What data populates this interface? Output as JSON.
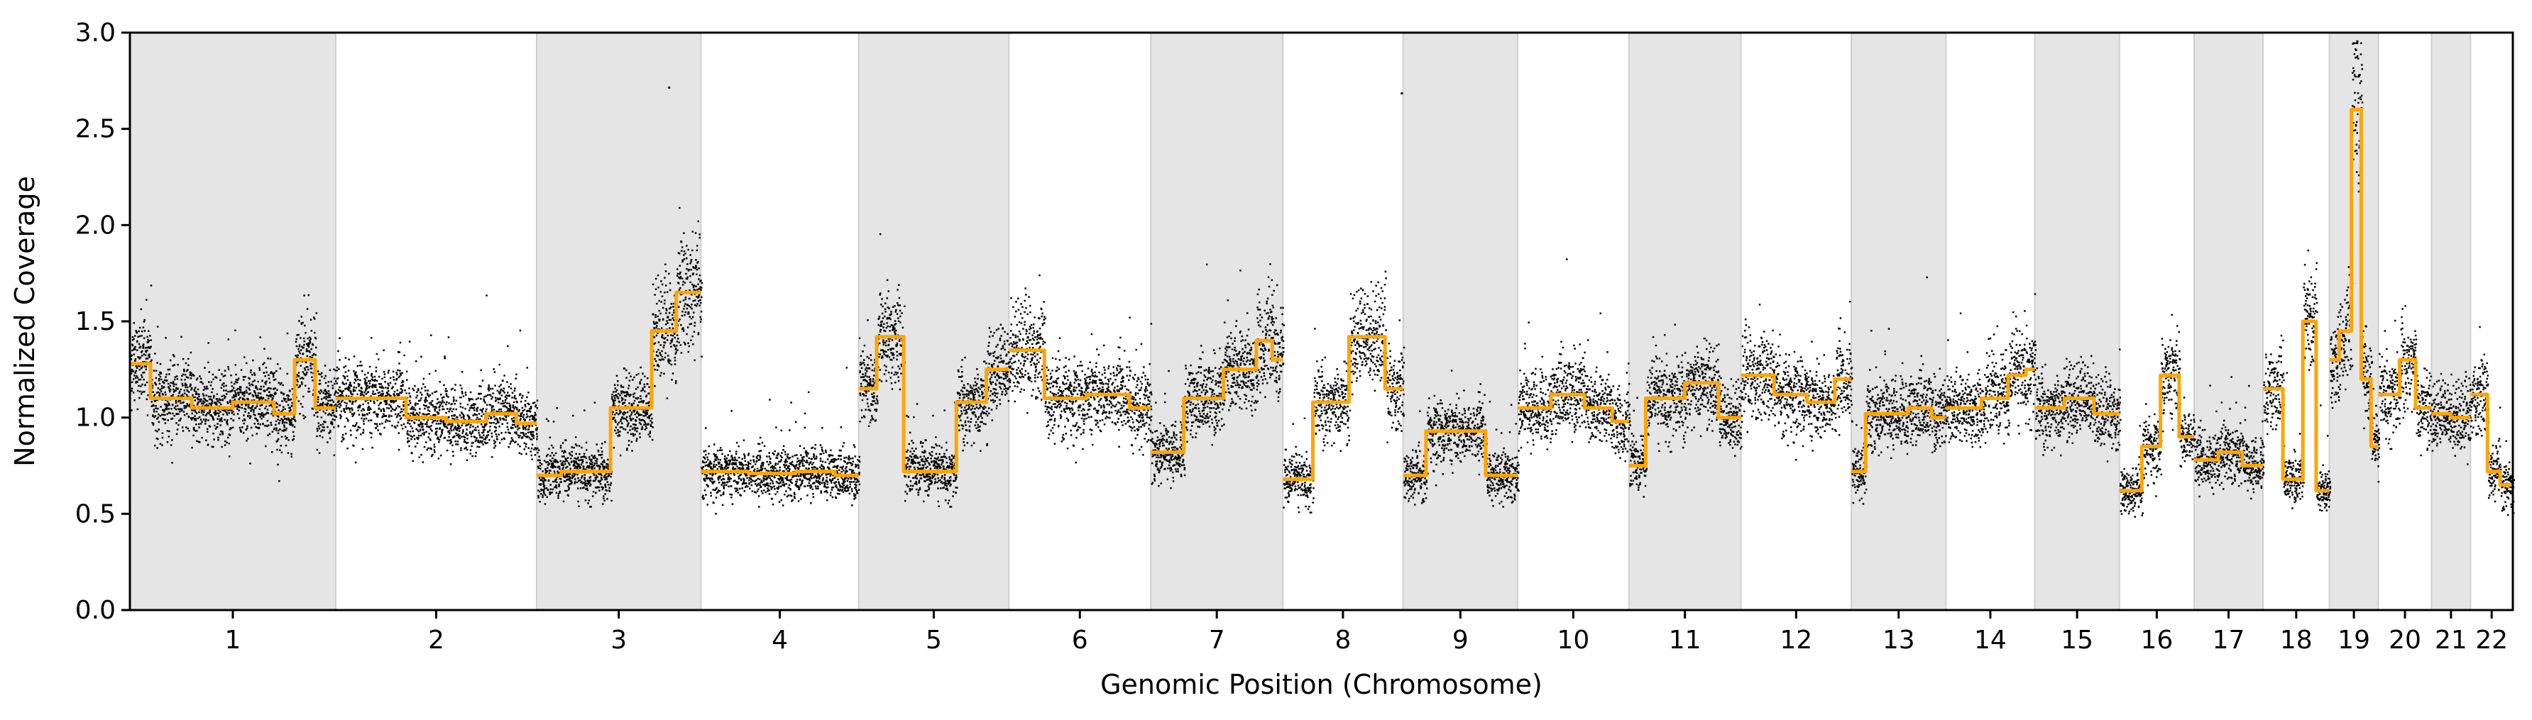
{
  "chart_data": {
    "type": "scatter",
    "title": "",
    "xlabel": "Genomic Position (Chromosome)",
    "ylabel": "Normalized Coverage",
    "ylim": [
      0.0,
      3.0
    ],
    "yticks": [
      "0.0",
      "0.5",
      "1.0",
      "1.5",
      "2.0",
      "2.5",
      "3.0"
    ],
    "shading": "alternating chromosome bands (odd-indexed bands gray)",
    "colors": {
      "points": "#000000",
      "segments": "#FFA500",
      "band": "#e5e5e5",
      "band_edge": "#cfcfcf"
    },
    "chromosomes": [
      {
        "label": "1",
        "length": 248,
        "segments": [
          [
            0,
            1.28
          ],
          [
            0.1,
            1.1
          ],
          [
            0.3,
            1.05
          ],
          [
            0.5,
            1.08
          ],
          [
            0.7,
            1.02
          ],
          [
            0.8,
            1.3
          ],
          [
            0.9,
            1.05
          ]
        ]
      },
      {
        "label": "2",
        "length": 242,
        "segments": [
          [
            0,
            1.1
          ],
          [
            0.35,
            1.0
          ],
          [
            0.55,
            0.98
          ],
          [
            0.75,
            1.02
          ],
          [
            0.9,
            0.97
          ]
        ]
      },
      {
        "label": "3",
        "length": 198,
        "segments": [
          [
            0,
            0.7
          ],
          [
            0.15,
            0.72
          ],
          [
            0.45,
            1.05
          ],
          [
            0.7,
            1.45
          ],
          [
            0.85,
            1.65
          ]
        ]
      },
      {
        "label": "4",
        "length": 190,
        "segments": [
          [
            0,
            0.72
          ],
          [
            0.3,
            0.71
          ],
          [
            0.6,
            0.72
          ],
          [
            0.85,
            0.7
          ]
        ]
      },
      {
        "label": "5",
        "length": 181,
        "segments": [
          [
            0,
            1.15
          ],
          [
            0.12,
            1.42
          ],
          [
            0.3,
            0.72
          ],
          [
            0.65,
            1.08
          ],
          [
            0.85,
            1.25
          ]
        ]
      },
      {
        "label": "6",
        "length": 171,
        "segments": [
          [
            0,
            1.35
          ],
          [
            0.25,
            1.1
          ],
          [
            0.55,
            1.12
          ],
          [
            0.85,
            1.05
          ]
        ]
      },
      {
        "label": "7",
        "length": 159,
        "segments": [
          [
            0,
            0.82
          ],
          [
            0.25,
            1.1
          ],
          [
            0.55,
            1.25
          ],
          [
            0.8,
            1.4
          ],
          [
            0.92,
            1.3
          ]
        ]
      },
      {
        "label": "8",
        "length": 145,
        "segments": [
          [
            0,
            0.68
          ],
          [
            0.25,
            1.08
          ],
          [
            0.55,
            1.42
          ],
          [
            0.85,
            1.15
          ]
        ]
      },
      {
        "label": "9",
        "length": 138,
        "segments": [
          [
            0,
            0.7
          ],
          [
            0.2,
            0.93
          ],
          [
            0.55,
            0.93
          ],
          [
            0.72,
            0.7
          ]
        ]
      },
      {
        "label": "10",
        "length": 134,
        "segments": [
          [
            0,
            1.05
          ],
          [
            0.3,
            1.12
          ],
          [
            0.6,
            1.05
          ],
          [
            0.85,
            0.98
          ]
        ]
      },
      {
        "label": "11",
        "length": 135,
        "segments": [
          [
            0,
            0.75
          ],
          [
            0.15,
            1.1
          ],
          [
            0.5,
            1.18
          ],
          [
            0.8,
            1.0
          ]
        ]
      },
      {
        "label": "12",
        "length": 133,
        "segments": [
          [
            0,
            1.22
          ],
          [
            0.3,
            1.12
          ],
          [
            0.6,
            1.08
          ],
          [
            0.85,
            1.2
          ]
        ]
      },
      {
        "label": "13",
        "length": 114,
        "segments": [
          [
            0,
            0.72
          ],
          [
            0.15,
            1.02
          ],
          [
            0.6,
            1.05
          ],
          [
            0.85,
            1.0
          ]
        ]
      },
      {
        "label": "14",
        "length": 107,
        "segments": [
          [
            0,
            1.05
          ],
          [
            0.4,
            1.1
          ],
          [
            0.7,
            1.22
          ],
          [
            0.9,
            1.25
          ]
        ]
      },
      {
        "label": "15",
        "length": 102,
        "segments": [
          [
            0,
            1.05
          ],
          [
            0.35,
            1.1
          ],
          [
            0.7,
            1.02
          ]
        ]
      },
      {
        "label": "16",
        "length": 90,
        "segments": [
          [
            0,
            0.62
          ],
          [
            0.3,
            0.85
          ],
          [
            0.55,
            1.22
          ],
          [
            0.8,
            0.9
          ]
        ]
      },
      {
        "label": "17",
        "length": 83,
        "segments": [
          [
            0,
            0.78
          ],
          [
            0.35,
            0.82
          ],
          [
            0.7,
            0.75
          ]
        ]
      },
      {
        "label": "18",
        "length": 80,
        "segments": [
          [
            0,
            1.15
          ],
          [
            0.3,
            0.68
          ],
          [
            0.6,
            1.5
          ],
          [
            0.8,
            0.62
          ]
        ]
      },
      {
        "label": "19",
        "length": 59,
        "segments": [
          [
            0,
            1.3
          ],
          [
            0.2,
            1.45
          ],
          [
            0.45,
            2.6
          ],
          [
            0.65,
            1.2
          ],
          [
            0.85,
            0.85
          ]
        ]
      },
      {
        "label": "20",
        "length": 64,
        "segments": [
          [
            0,
            1.12
          ],
          [
            0.4,
            1.3
          ],
          [
            0.7,
            1.05
          ]
        ]
      },
      {
        "label": "21",
        "length": 47,
        "segments": [
          [
            0,
            1.02
          ],
          [
            0.5,
            1.0
          ]
        ]
      },
      {
        "label": "22",
        "length": 51,
        "segments": [
          [
            0,
            1.12
          ],
          [
            0.4,
            0.72
          ],
          [
            0.7,
            0.65
          ]
        ]
      }
    ],
    "annotations": [
      {
        "chrom": "3",
        "pos": 0.8,
        "value": 2.72
      },
      {
        "chrom": "8",
        "pos": 0.98,
        "value": 2.69
      },
      {
        "chrom": "19",
        "pos": 0.55,
        "value": 2.96
      }
    ]
  }
}
